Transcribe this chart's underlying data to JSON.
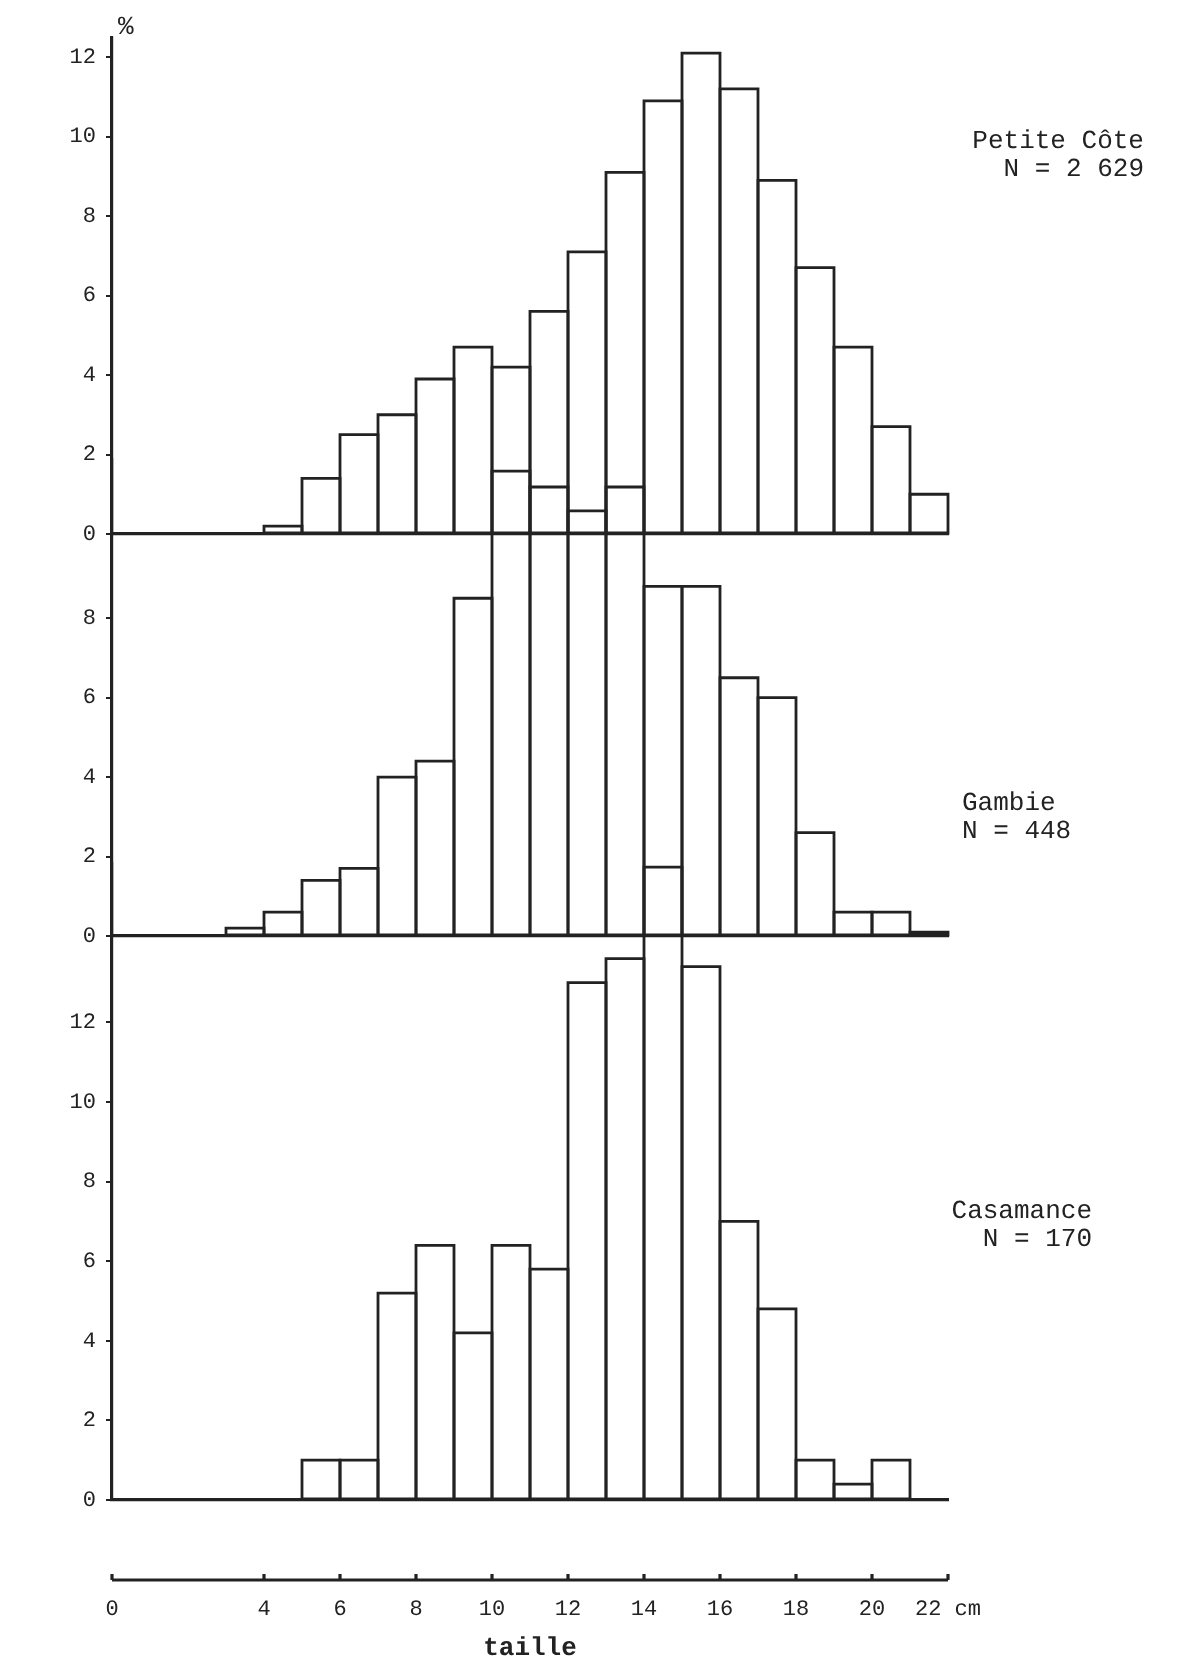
{
  "chart_data": [
    {
      "type": "histogram",
      "annotations": [
        "Petite Côte",
        "N = 2 629"
      ],
      "ylabel": "%",
      "bins": [
        4,
        5,
        6,
        7,
        8,
        9,
        10,
        11,
        12,
        13,
        14,
        15,
        16,
        17,
        18,
        19,
        20,
        21,
        22
      ],
      "values": [
        0.2,
        1.4,
        2.5,
        3.0,
        3.9,
        4.7,
        4.2,
        5.6,
        7.1,
        9.1,
        10.9,
        12.1,
        11.2,
        8.9,
        6.7,
        4.7,
        2.7,
        1.0
      ],
      "color": "#222222",
      "xlim": [
        0,
        22
      ],
      "ylim": [
        0,
        12.5
      ],
      "yticks": [
        0,
        2,
        4,
        6,
        8,
        10,
        12
      ],
      "tick_labels": "y"
    },
    {
      "type": "histogram",
      "annotations": [
        "Gambie",
        "N = 448"
      ],
      "bins": [
        3,
        4,
        5,
        6,
        7,
        8,
        9,
        10,
        11,
        12,
        13,
        14,
        15,
        16,
        17,
        18,
        19,
        20,
        21,
        22
      ],
      "values": [
        0.2,
        0.6,
        1.4,
        1.7,
        4.0,
        4.4,
        8.5,
        11.7,
        11.3,
        10.7,
        11.3,
        8.8,
        8.8,
        6.5,
        6.0,
        2.6,
        0.6,
        0.6,
        0.1
      ],
      "color": "#222222",
      "xlim": [
        0,
        22
      ],
      "ylim": [
        0,
        12
      ],
      "yticks": [
        0,
        2,
        4,
        6,
        8
      ],
      "tick_labels": "y"
    },
    {
      "type": "histogram",
      "annotations": [
        "Casamance",
        "N = 170"
      ],
      "xlabel": "taille",
      "bins": [
        5,
        6,
        7,
        8,
        9,
        10,
        11,
        12,
        13,
        14,
        15,
        16,
        17,
        18,
        19,
        20,
        21
      ],
      "values": [
        1.0,
        1.0,
        5.2,
        6.4,
        4.2,
        6.4,
        5.8,
        13.0,
        13.6,
        15.9,
        13.4,
        7.0,
        4.8,
        1.0,
        0.4,
        1.0
      ],
      "color": "#222222",
      "xlim": [
        0,
        22
      ],
      "xticks": [
        0,
        4,
        6,
        8,
        10,
        12,
        14,
        16,
        18,
        20,
        {
          "value": 22,
          "label": "22 cm"
        }
      ],
      "ylim": [
        0,
        16
      ],
      "yticks": [
        0,
        2,
        4,
        6,
        8,
        10,
        12
      ]
    }
  ]
}
